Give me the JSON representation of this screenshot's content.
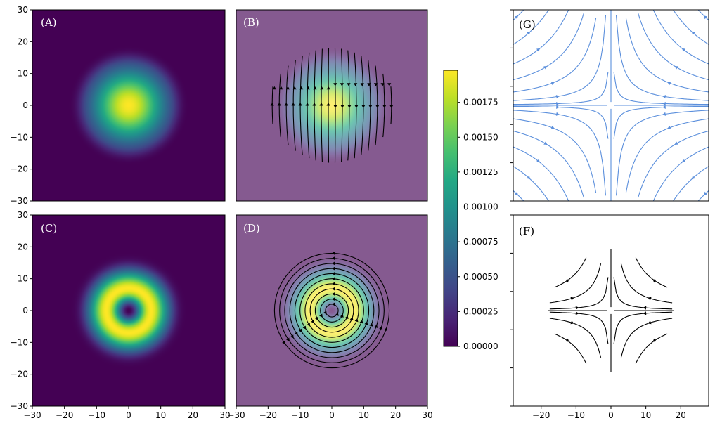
{
  "chart_data": [
    {
      "panel": "A",
      "label": "(A)",
      "type": "heatmap",
      "description_field": "gaussian",
      "x_range": [
        -30,
        30
      ],
      "y_range": [
        -30,
        30
      ],
      "sigma": 8,
      "cutoff_radius": 18,
      "xticks": [],
      "yticks": [
        "30",
        "20",
        "10",
        "0",
        "−10",
        "−20",
        "−30"
      ],
      "grid": false
    },
    {
      "panel": "B",
      "label": "(B)",
      "type": "heatmap",
      "field": "gaussian",
      "overlay": "streamlines",
      "streamline_color": "#000000",
      "x_range": [
        -30,
        30
      ],
      "y_range": [
        -30,
        30
      ],
      "disk_radius": 18,
      "xticks": [],
      "yticks": [],
      "grid": false
    },
    {
      "panel": "C",
      "label": "(C)",
      "type": "heatmap",
      "field": "ring",
      "x_range": [
        -30,
        30
      ],
      "y_range": [
        -30,
        30
      ],
      "ring_peak_radius": 7,
      "xticks": [
        "−30",
        "−20",
        "−10",
        "0",
        "10",
        "20",
        "30"
      ],
      "yticks": [
        "30",
        "20",
        "10",
        "0",
        "−10",
        "−20",
        "−30"
      ],
      "grid": false
    },
    {
      "panel": "D",
      "label": "(D)",
      "type": "heatmap",
      "field": "ring",
      "overlay": "circular streamlines",
      "streamline_color": "#000000",
      "x_range": [
        -30,
        30
      ],
      "y_range": [
        -30,
        30
      ],
      "disk_radius": 18,
      "xticks": [
        "−30",
        "−20",
        "−10",
        "0",
        "10",
        "20",
        "30"
      ],
      "yticks": [],
      "grid": false
    },
    {
      "type": "colorbar",
      "colormap": "viridis",
      "vmin": 0.0,
      "vmax": 0.00198,
      "ticks": [
        0.0,
        0.00025,
        0.0005,
        0.00075,
        0.001,
        0.00125,
        0.0015,
        0.00175
      ],
      "tick_labels": [
        "0.00000",
        "0.00025",
        "0.00050",
        "0.00075",
        "0.00100",
        "0.00125",
        "0.00150",
        "0.00175"
      ]
    },
    {
      "panel": "G",
      "label": "(G)",
      "type": "streamplot",
      "field": "saddle",
      "color": "#5b8fdc",
      "x_range": [
        -28,
        28
      ],
      "y_range": [
        -28,
        28
      ],
      "xticks": [],
      "yticks": [],
      "grid": false
    },
    {
      "panel": "F",
      "label": "(F)",
      "type": "streamplot",
      "field": "saddle (disk, r=18)",
      "color": "#000000",
      "x_range": [
        -28,
        28
      ],
      "y_range": [
        -28,
        28
      ],
      "xticks": [
        "−20",
        "−10",
        "0",
        "10",
        "20"
      ],
      "yticks": [],
      "grid": false
    }
  ]
}
